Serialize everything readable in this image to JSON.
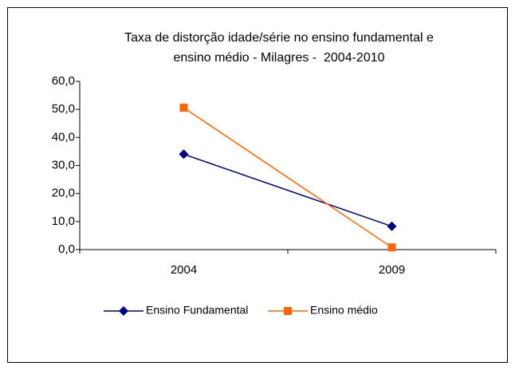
{
  "chart_data": {
    "type": "line",
    "title": [
      "Taxa de distorção idade/série no ensino fundamental e",
      "ensino médio - Milagres -  2004-2010"
    ],
    "categories": [
      "2004",
      "2009"
    ],
    "series": [
      {
        "name": "Ensino Fundamental",
        "color": "#000080",
        "marker": "diamond",
        "values": [
          34.0,
          8.3
        ]
      },
      {
        "name": "Ensino médio",
        "color": "#FF6600",
        "marker": "square",
        "values": [
          50.6,
          0.8
        ]
      }
    ],
    "ylim": [
      0,
      60
    ],
    "yticks": [
      {
        "value": 0,
        "label": "0,0"
      },
      {
        "value": 10,
        "label": "10,0"
      },
      {
        "value": 20,
        "label": "20,0"
      },
      {
        "value": 30,
        "label": "30,0"
      },
      {
        "value": 40,
        "label": "40,0"
      },
      {
        "value": 50,
        "label": "50,0"
      },
      {
        "value": 60,
        "label": "60,0"
      }
    ],
    "grid": false,
    "legend": "bottom"
  }
}
